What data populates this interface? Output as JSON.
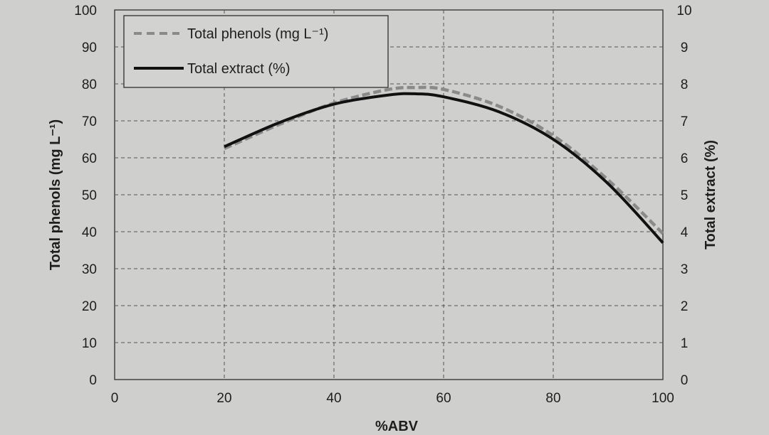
{
  "chart_data": {
    "type": "line",
    "title": "",
    "xlabel": "%ABV",
    "ylabel_left": "Total phenols (mg L⁻¹)",
    "ylabel_right": "Total extract (%)",
    "xlim": [
      0,
      100
    ],
    "ylim_left": [
      0,
      100
    ],
    "ylim_right": [
      0,
      10
    ],
    "x_ticks": [
      "0",
      "20",
      "40",
      "60",
      "80",
      "100"
    ],
    "y_left_ticks": [
      "0",
      "10",
      "20",
      "30",
      "40",
      "50",
      "60",
      "70",
      "80",
      "90",
      "100"
    ],
    "y_right_ticks": [
      "0",
      "1",
      "2",
      "3",
      "4",
      "5",
      "6",
      "7",
      "8",
      "9",
      "10"
    ],
    "grid": true,
    "legend_position": "top-left",
    "series": [
      {
        "name": "Total phenols (mg L⁻¹)",
        "axis": "left",
        "style": "dashed",
        "color": "#8a8a8a",
        "x": [
          20,
          30,
          40,
          50,
          55,
          60,
          70,
          80,
          90,
          100
        ],
        "y": [
          62.5,
          69,
          74.8,
          78.5,
          79,
          78.5,
          74,
          66,
          54,
          39.5
        ]
      },
      {
        "name": "Total extract (%)",
        "axis": "right",
        "style": "solid",
        "color": "#111111",
        "x": [
          20,
          30,
          40,
          50,
          55,
          60,
          70,
          80,
          90,
          100
        ],
        "y": [
          6.3,
          6.95,
          7.45,
          7.7,
          7.73,
          7.65,
          7.25,
          6.5,
          5.3,
          3.7
        ]
      }
    ]
  }
}
